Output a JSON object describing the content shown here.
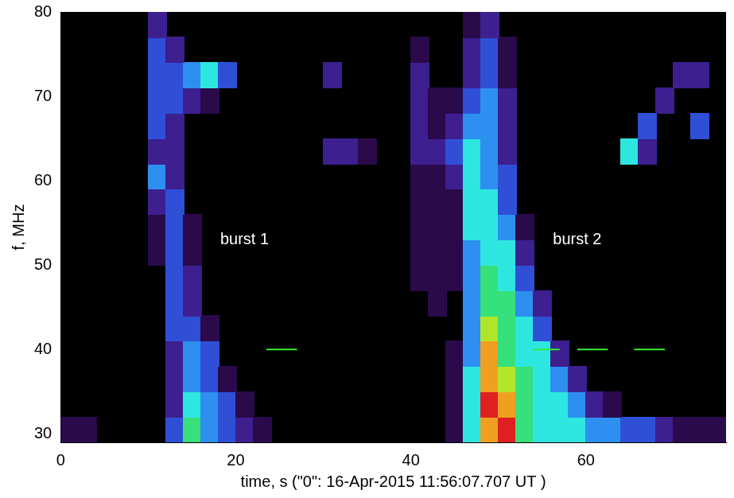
{
  "chart_data": {
    "type": "heatmap",
    "x_label": "time, s (\"0\": 16-Apr-2015 11:56:07.707 UT )",
    "y_label": "f, MHz",
    "xlim": [
      0,
      76
    ],
    "ylim": [
      29,
      80
    ],
    "xticks": [
      0,
      20,
      40,
      60
    ],
    "yticks": [
      30,
      40,
      50,
      60,
      70,
      80
    ],
    "grid": false,
    "time_edges": [
      0,
      2,
      4,
      6,
      8,
      10,
      12,
      14,
      16,
      18,
      20,
      22,
      24,
      26,
      28,
      30,
      32,
      34,
      36,
      38,
      40,
      42,
      44,
      46,
      48,
      50,
      52,
      54,
      56,
      58,
      60,
      62,
      64,
      66,
      68,
      70,
      72,
      74,
      76
    ],
    "freq_edges": [
      29,
      32,
      35,
      38,
      41,
      44,
      47,
      50,
      53,
      56,
      59,
      62,
      65,
      68,
      71,
      74,
      77,
      80
    ],
    "intensity": [
      [
        1,
        1,
        0,
        0,
        0,
        0,
        3,
        6,
        4,
        3,
        2,
        1,
        0,
        0,
        0,
        0,
        0,
        0,
        0,
        0,
        0,
        0,
        1,
        5,
        8,
        9,
        6,
        5,
        5,
        5,
        4,
        4,
        3,
        3,
        2,
        1,
        1,
        1
      ],
      [
        0,
        0,
        0,
        0,
        0,
        0,
        2,
        5,
        4,
        3,
        1,
        0,
        0,
        0,
        0,
        0,
        0,
        0,
        0,
        0,
        0,
        0,
        1,
        5,
        9,
        8,
        6,
        5,
        5,
        4,
        2,
        1,
        0,
        0,
        0,
        0,
        0,
        0
      ],
      [
        0,
        0,
        0,
        0,
        0,
        0,
        2,
        4,
        3,
        1,
        0,
        0,
        0,
        0,
        0,
        0,
        0,
        0,
        0,
        0,
        0,
        0,
        1,
        5,
        8,
        7,
        6,
        5,
        4,
        2,
        0,
        0,
        0,
        0,
        0,
        0,
        0,
        0
      ],
      [
        0,
        0,
        0,
        0,
        0,
        0,
        2,
        4,
        3,
        0,
        0,
        0,
        0,
        0,
        0,
        0,
        0,
        0,
        0,
        0,
        0,
        0,
        1,
        4,
        8,
        6,
        5,
        5,
        2,
        0,
        0,
        0,
        0,
        0,
        0,
        0,
        0,
        0
      ],
      [
        0,
        0,
        0,
        0,
        0,
        0,
        3,
        3,
        1,
        0,
        0,
        0,
        0,
        0,
        0,
        0,
        0,
        0,
        0,
        0,
        0,
        0,
        0,
        4,
        7,
        6,
        5,
        3,
        0,
        0,
        0,
        0,
        0,
        0,
        0,
        0,
        0,
        0
      ],
      [
        0,
        0,
        0,
        0,
        0,
        0,
        3,
        2,
        0,
        0,
        0,
        0,
        0,
        0,
        0,
        0,
        0,
        0,
        0,
        0,
        0,
        1,
        0,
        4,
        6,
        6,
        4,
        2,
        0,
        0,
        0,
        0,
        0,
        0,
        0,
        0,
        0,
        0
      ],
      [
        0,
        0,
        0,
        0,
        0,
        0,
        3,
        2,
        0,
        0,
        0,
        0,
        0,
        0,
        0,
        0,
        0,
        0,
        0,
        0,
        1,
        1,
        1,
        4,
        6,
        5,
        3,
        0,
        0,
        0,
        0,
        0,
        0,
        0,
        0,
        0,
        0,
        0
      ],
      [
        0,
        0,
        0,
        0,
        0,
        1,
        3,
        1,
        0,
        0,
        0,
        0,
        0,
        0,
        0,
        0,
        0,
        0,
        0,
        0,
        1,
        1,
        1,
        4,
        5,
        5,
        2,
        0,
        0,
        0,
        0,
        0,
        0,
        0,
        0,
        0,
        0,
        0
      ],
      [
        0,
        0,
        0,
        0,
        0,
        1,
        3,
        1,
        0,
        0,
        0,
        0,
        0,
        0,
        0,
        0,
        0,
        0,
        0,
        0,
        1,
        1,
        1,
        5,
        5,
        4,
        1,
        0,
        0,
        0,
        0,
        0,
        0,
        0,
        0,
        0,
        0,
        0
      ],
      [
        0,
        0,
        0,
        0,
        0,
        2,
        3,
        0,
        0,
        0,
        0,
        0,
        0,
        0,
        0,
        0,
        0,
        0,
        0,
        0,
        1,
        1,
        1,
        5,
        5,
        3,
        0,
        0,
        0,
        0,
        0,
        0,
        0,
        0,
        0,
        0,
        0,
        0
      ],
      [
        0,
        0,
        0,
        0,
        0,
        4,
        2,
        0,
        0,
        0,
        0,
        0,
        0,
        0,
        0,
        0,
        0,
        0,
        0,
        0,
        1,
        1,
        2,
        5,
        4,
        3,
        0,
        0,
        0,
        0,
        0,
        0,
        0,
        0,
        0,
        0,
        0,
        0
      ],
      [
        0,
        0,
        0,
        0,
        0,
        2,
        2,
        0,
        0,
        0,
        0,
        0,
        0,
        0,
        0,
        2,
        2,
        1,
        0,
        0,
        2,
        2,
        3,
        5,
        4,
        2,
        0,
        0,
        0,
        0,
        0,
        0,
        5,
        2,
        0,
        0,
        0,
        0
      ],
      [
        0,
        0,
        0,
        0,
        0,
        3,
        2,
        0,
        0,
        0,
        0,
        0,
        0,
        0,
        0,
        0,
        0,
        0,
        0,
        0,
        2,
        1,
        2,
        4,
        4,
        2,
        0,
        0,
        0,
        0,
        0,
        0,
        0,
        3,
        0,
        0,
        3,
        0
      ],
      [
        0,
        0,
        0,
        0,
        0,
        3,
        3,
        2,
        1,
        0,
        0,
        0,
        0,
        0,
        0,
        0,
        0,
        0,
        0,
        0,
        2,
        1,
        1,
        3,
        4,
        2,
        0,
        0,
        0,
        0,
        0,
        0,
        0,
        0,
        2,
        0,
        0,
        0
      ],
      [
        0,
        0,
        0,
        0,
        0,
        3,
        3,
        4,
        5,
        3,
        0,
        0,
        0,
        0,
        0,
        2,
        0,
        0,
        0,
        0,
        2,
        0,
        0,
        2,
        3,
        1,
        0,
        0,
        0,
        0,
        0,
        0,
        0,
        0,
        0,
        2,
        2,
        0
      ],
      [
        0,
        0,
        0,
        0,
        0,
        3,
        2,
        0,
        0,
        0,
        0,
        0,
        0,
        0,
        0,
        0,
        0,
        0,
        0,
        0,
        1,
        0,
        0,
        2,
        3,
        1,
        0,
        0,
        0,
        0,
        0,
        0,
        0,
        0,
        0,
        0,
        0,
        0
      ],
      [
        0,
        0,
        0,
        0,
        0,
        2,
        0,
        0,
        0,
        0,
        0,
        0,
        0,
        0,
        0,
        0,
        0,
        0,
        0,
        0,
        0,
        0,
        0,
        1,
        2,
        0,
        0,
        0,
        0,
        0,
        0,
        0,
        0,
        0,
        0,
        0,
        0,
        0
      ]
    ],
    "segments": [
      {
        "x": [
          23.5,
          27
        ],
        "y": 40,
        "color": "#33ee33"
      },
      {
        "x": [
          54,
          57
        ],
        "y": 40,
        "color": "#33ee33"
      },
      {
        "x": [
          59,
          62.5
        ],
        "y": 40,
        "color": "#33ee33"
      },
      {
        "x": [
          65.5,
          69
        ],
        "y": 40,
        "color": "#33ee33"
      }
    ],
    "annotations": [
      {
        "text": "burst 1",
        "x": 21,
        "y": 53
      },
      {
        "text": "burst 2",
        "x": 59,
        "y": 53
      }
    ]
  }
}
